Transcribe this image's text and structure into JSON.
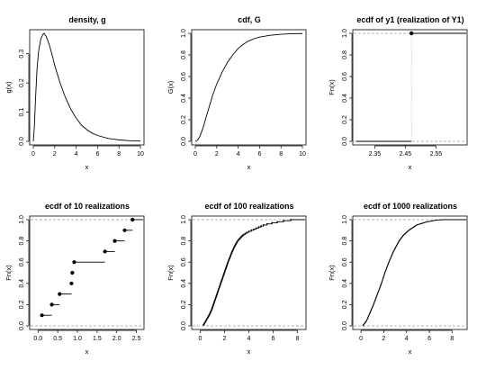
{
  "chart_data": [
    {
      "type": "line",
      "title": "density, g",
      "xlabel": "x",
      "ylabel": "g(x)",
      "xlim": [
        0,
        10
      ],
      "ylim": [
        0,
        0.37
      ],
      "xticks": [
        0,
        2,
        4,
        6,
        8,
        10
      ],
      "yticks": [
        0.0,
        0.1,
        0.2,
        0.3
      ],
      "yticklabels": [
        "0.0",
        "0.1",
        "0.2",
        "0.3"
      ],
      "series": [
        {
          "x": [
            0,
            0.1,
            0.2,
            0.35,
            0.5,
            0.7,
            0.9,
            1.0,
            1.2,
            1.5,
            1.8,
            2.0,
            2.5,
            3.0,
            3.5,
            4.0,
            4.5,
            5.0,
            5.5,
            6.0,
            7.0,
            8.0,
            9.0,
            10.0
          ],
          "y": [
            0,
            0.05,
            0.14,
            0.25,
            0.31,
            0.35,
            0.367,
            0.37,
            0.36,
            0.33,
            0.29,
            0.26,
            0.2,
            0.15,
            0.11,
            0.08,
            0.055,
            0.04,
            0.028,
            0.02,
            0.01,
            0.005,
            0.002,
            0.001
          ]
        }
      ]
    },
    {
      "type": "line",
      "title": "cdf, G",
      "xlabel": "x",
      "ylabel": "G(x)",
      "xlim": [
        0,
        10
      ],
      "ylim": [
        0,
        1
      ],
      "xticks": [
        0,
        2,
        4,
        6,
        8,
        10
      ],
      "yticks": [
        0.0,
        0.2,
        0.4,
        0.6,
        0.8,
        1.0
      ],
      "yticklabels": [
        "0.0",
        "0.2",
        "0.4",
        "0.6",
        "0.8",
        "1.0"
      ],
      "series": [
        {
          "x": [
            0,
            0.2,
            0.4,
            0.6,
            0.8,
            1.0,
            1.3,
            1.6,
            2.0,
            2.5,
            3.0,
            3.5,
            4.0,
            4.5,
            5.0,
            5.5,
            6.0,
            7.0,
            8.0,
            9.0,
            10.0
          ],
          "y": [
            0,
            0.01,
            0.04,
            0.09,
            0.15,
            0.22,
            0.32,
            0.42,
            0.53,
            0.64,
            0.73,
            0.8,
            0.86,
            0.9,
            0.93,
            0.95,
            0.965,
            0.982,
            0.991,
            0.996,
            0.998
          ]
        }
      ]
    },
    {
      "type": "ecdf",
      "title": "ecdf of y1 (realization of Y1)",
      "xlabel": "x",
      "ylabel": "Fn(x)",
      "xlim": [
        2.29,
        2.64
      ],
      "ylim": [
        0,
        1
      ],
      "xticks": [
        2.35,
        2.45,
        2.55
      ],
      "xticklabels": [
        "2.35",
        "2.45",
        "2.55"
      ],
      "yticks": [
        0.0,
        0.2,
        0.4,
        0.6,
        0.8,
        1.0
      ],
      "yticklabels": [
        "0.0",
        "0.2",
        "0.4",
        "0.6",
        "0.8",
        "1.0"
      ],
      "points": [
        2.47
      ]
    },
    {
      "type": "ecdf",
      "title": "ecdf of 10 realizations",
      "xlabel": "x",
      "ylabel": "Fn(x)",
      "xlim": [
        -0.12,
        2.6
      ],
      "ylim": [
        0,
        1
      ],
      "xticks": [
        0.0,
        0.5,
        1.0,
        1.5,
        2.0,
        2.5
      ],
      "xticklabels": [
        "0.0",
        "0.5",
        "1.0",
        "1.5",
        "2.0",
        "2.5"
      ],
      "yticks": [
        0.0,
        0.2,
        0.4,
        0.6,
        0.8,
        1.0
      ],
      "yticklabels": [
        "0.0",
        "0.2",
        "0.4",
        "0.6",
        "0.8",
        "1.0"
      ],
      "points": [
        0.1,
        0.35,
        0.55,
        0.85,
        0.87,
        0.92,
        1.7,
        1.95,
        2.2,
        2.4
      ]
    },
    {
      "type": "ecdf",
      "title": "ecdf of 100 realizations",
      "xlabel": "x",
      "ylabel": "Fn(x)",
      "xlim": [
        -0.4,
        8.4
      ],
      "ylim": [
        0,
        1
      ],
      "xticks": [
        0,
        2,
        4,
        6,
        8
      ],
      "yticks": [
        0.0,
        0.2,
        0.4,
        0.6,
        0.8,
        1.0
      ],
      "yticklabels": [
        "0.0",
        "0.2",
        "0.4",
        "0.6",
        "0.8",
        "1.0"
      ],
      "quantiles": {
        "p": [
          0,
          0.02,
          0.05,
          0.1,
          0.15,
          0.2,
          0.3,
          0.4,
          0.5,
          0.6,
          0.7,
          0.75,
          0.8,
          0.85,
          0.88,
          0.9,
          0.93,
          0.95,
          0.97,
          0.99,
          1.0
        ],
        "x": [
          0.25,
          0.35,
          0.5,
          0.75,
          0.95,
          1.1,
          1.4,
          1.7,
          2.0,
          2.3,
          2.65,
          2.85,
          3.1,
          3.5,
          3.9,
          4.3,
          4.9,
          5.3,
          6.1,
          7.1,
          7.8
        ]
      },
      "n": 100
    },
    {
      "type": "ecdf",
      "title": "ecdf of 1000 realizations",
      "xlabel": "x",
      "ylabel": "Fn(x)",
      "xlim": [
        -0.4,
        9.0
      ],
      "ylim": [
        0,
        1
      ],
      "xticks": [
        0,
        2,
        4,
        6,
        8
      ],
      "yticks": [
        0.0,
        0.2,
        0.4,
        0.6,
        0.8,
        1.0
      ],
      "yticklabels": [
        "0.0",
        "0.2",
        "0.4",
        "0.6",
        "0.8",
        "1.0"
      ],
      "quantiles": {
        "p": [
          0,
          0.02,
          0.05,
          0.1,
          0.2,
          0.3,
          0.4,
          0.5,
          0.6,
          0.7,
          0.8,
          0.85,
          0.9,
          0.95,
          0.98,
          0.995,
          1.0
        ],
        "x": [
          0.15,
          0.3,
          0.5,
          0.7,
          1.1,
          1.45,
          1.8,
          2.1,
          2.45,
          2.85,
          3.35,
          3.7,
          4.2,
          4.9,
          5.8,
          6.6,
          7.2
        ]
      },
      "n": 1000
    }
  ]
}
